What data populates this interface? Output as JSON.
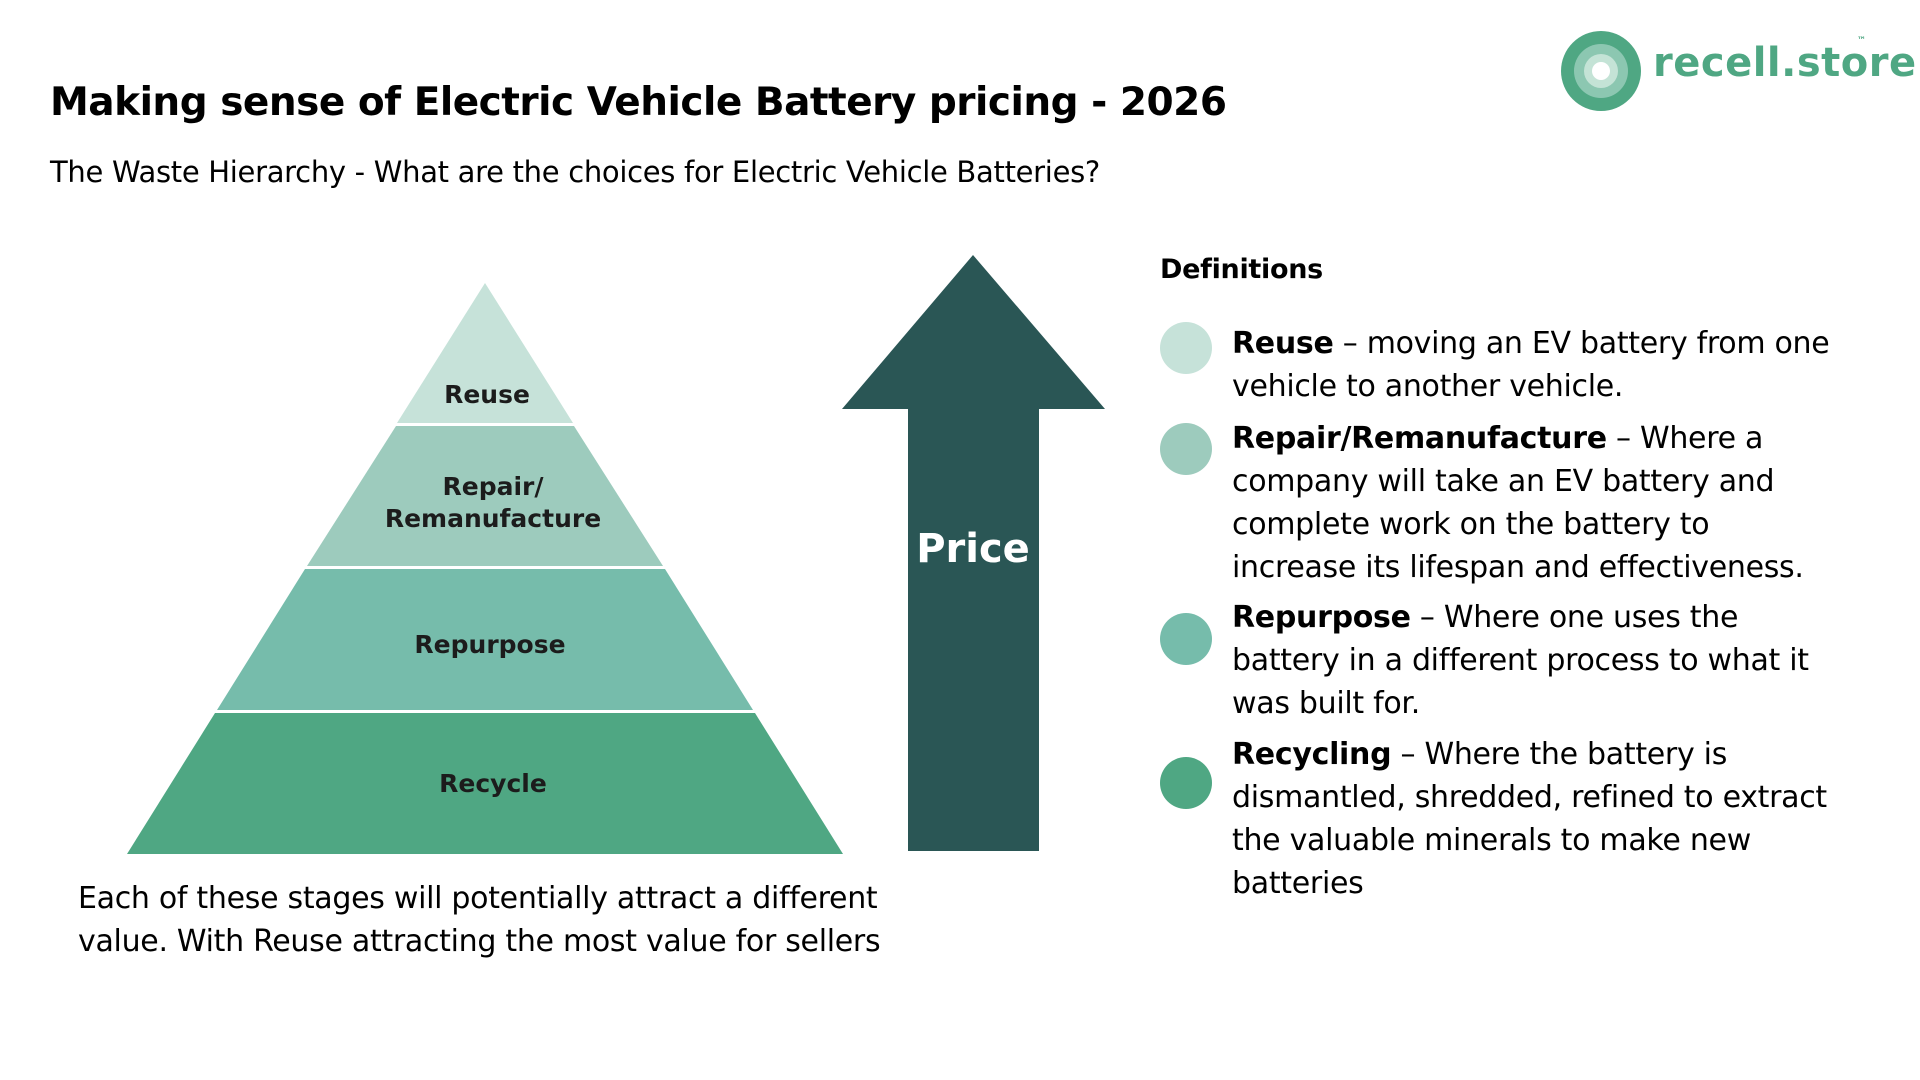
{
  "header": {
    "title": "Making sense of Electric Vehicle Battery pricing - 2026",
    "subtitle": "The Waste Hierarchy - What are the choices for Electric Vehicle Batteries?"
  },
  "logo": {
    "text": "recell.store",
    "tm": "™",
    "color": "#4fa783",
    "icon": "concentric-circles-icon"
  },
  "pyramid": {
    "levels": [
      {
        "label": "Reuse",
        "color": "#c6e2d9"
      },
      {
        "label": "Repair/",
        "label2": "Remanufacture",
        "color": "#9dcbbd"
      },
      {
        "label": "Repurpose",
        "color": "#76bcab"
      },
      {
        "label": "Recycle",
        "color": "#4fa783"
      }
    ]
  },
  "arrow": {
    "label": "Price",
    "color": "#2a5655",
    "direction": "up"
  },
  "caption": "Each of these stages will potentially attract a different value. With Reuse attracting the most value for sellers",
  "definitions": {
    "heading": "Definitions",
    "items": [
      {
        "term": "Reuse",
        "text": " – moving an EV battery from one vehicle to another vehicle.",
        "color": "#c6e2d9"
      },
      {
        "term": "Repair/Remanufacture",
        "text": " – Where a company will take an EV battery and complete work on the battery to increase its lifespan and effectiveness.",
        "color": "#9dcbbd"
      },
      {
        "term": "Repurpose",
        "text": " – Where one uses the battery in a different process to what it was built for.",
        "color": "#76bcab"
      },
      {
        "term": "Recycling",
        "text": " – Where the battery is dismantled, shredded, refined to extract the valuable minerals to make new batteries",
        "color": "#4fa783"
      }
    ]
  }
}
